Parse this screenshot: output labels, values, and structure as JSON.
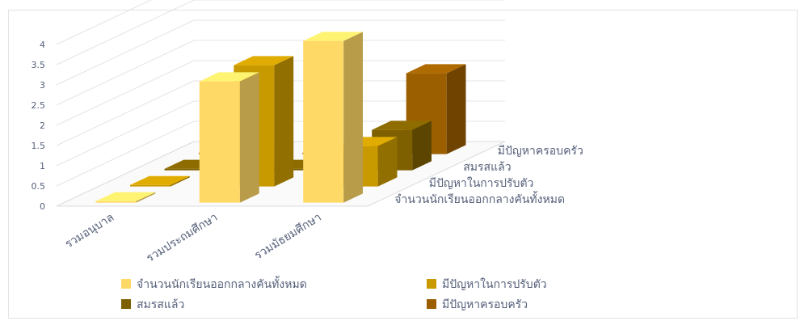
{
  "chart_data": {
    "type": "bar",
    "subtype": "3d-clustered-column",
    "categories": [
      "รวมอนุบาล",
      "รวมประถมศึกษา",
      "รวมมัธยมศึกษา"
    ],
    "series": [
      {
        "name": "จำนวนนักเรียนออกกลางคันทั้งหมด",
        "values": [
          0,
          3,
          4
        ],
        "color": "#ffd966"
      },
      {
        "name": "มีปัญหาในการปรับตัว",
        "values": [
          0,
          3,
          1
        ],
        "color": "#c99a00"
      },
      {
        "name": "สมรสแล้ว",
        "values": [
          0,
          0,
          1
        ],
        "color": "#7f6000"
      },
      {
        "name": "มีปัญหาครอบครัว",
        "values": [
          0,
          0,
          2
        ],
        "color": "#9c5f00"
      }
    ],
    "depth_labels": [
      "มีปัญหาครอบครัว",
      "สมรสแล้ว",
      "มีปัญหาในการปรับตัว",
      "จำนวนนักเรียนออกกลางคันทั้งหมด"
    ],
    "y_ticks": [
      "0",
      "0.5",
      "1",
      "1.5",
      "2",
      "2.5",
      "3",
      "3.5",
      "4"
    ],
    "ylim": [
      0,
      4
    ],
    "grid": true,
    "legend": {
      "position": "bottom",
      "items": [
        "จำนวนนักเรียนออกกลางคันทั้งหมด",
        "มีปัญหาในการปรับตัว",
        "สมรสแล้ว",
        "มีปัญหาครอบครัว"
      ]
    }
  }
}
